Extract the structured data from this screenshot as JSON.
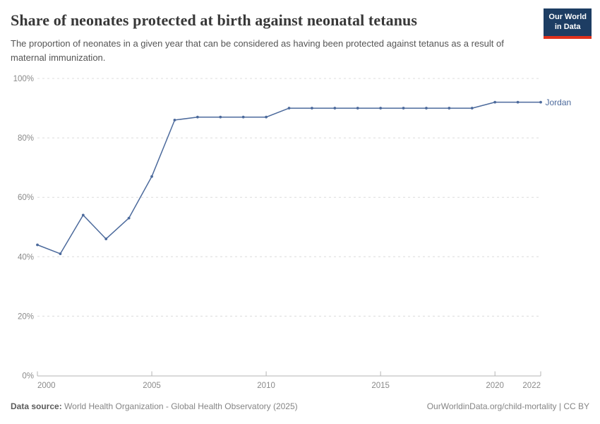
{
  "header": {
    "title": "Share of neonates protected at birth against neonatal tetanus",
    "subtitle": "The proportion of neonates in a given year that can be considered as having been protected against tetanus as a result of maternal immunization.",
    "logo": {
      "line1": "Our World",
      "line2": "in Data",
      "bg_color": "#1d3d63",
      "accent_color": "#e0311c"
    }
  },
  "chart_data": {
    "type": "line",
    "title": "Share of neonates protected at birth against neonatal tetanus",
    "x": [
      2000,
      2001,
      2002,
      2003,
      2004,
      2005,
      2006,
      2007,
      2008,
      2009,
      2010,
      2011,
      2012,
      2013,
      2014,
      2015,
      2016,
      2017,
      2018,
      2019,
      2020,
      2021,
      2022
    ],
    "series": [
      {
        "name": "Jordan",
        "color": "#4C6A9C",
        "values": [
          44,
          41,
          54,
          46,
          53,
          67,
          86,
          87,
          87,
          87,
          87,
          90,
          90,
          90,
          90,
          90,
          90,
          90,
          90,
          90,
          92,
          92,
          92
        ]
      }
    ],
    "end_label": "Jordan",
    "xlabel": "",
    "ylabel": "",
    "xlim": [
      2000,
      2022
    ],
    "ylim": [
      0,
      100
    ],
    "x_ticks": [
      2000,
      2005,
      2010,
      2015,
      2020,
      2022
    ],
    "y_ticks": [
      0,
      20,
      40,
      60,
      80,
      100
    ],
    "y_tick_suffix": "%",
    "grid": "horizontal-dashed",
    "legend_position": "end-of-line",
    "colors": {
      "gridline": "#dcdcdc",
      "axis_line": "#b5b5b5",
      "tick_label": "#8a8a8a"
    }
  },
  "footer": {
    "datasource_label": "Data source:",
    "datasource_value": " World Health Organization - Global Health Observatory (2025)",
    "rights": "OurWorldinData.org/child-mortality | CC BY"
  }
}
